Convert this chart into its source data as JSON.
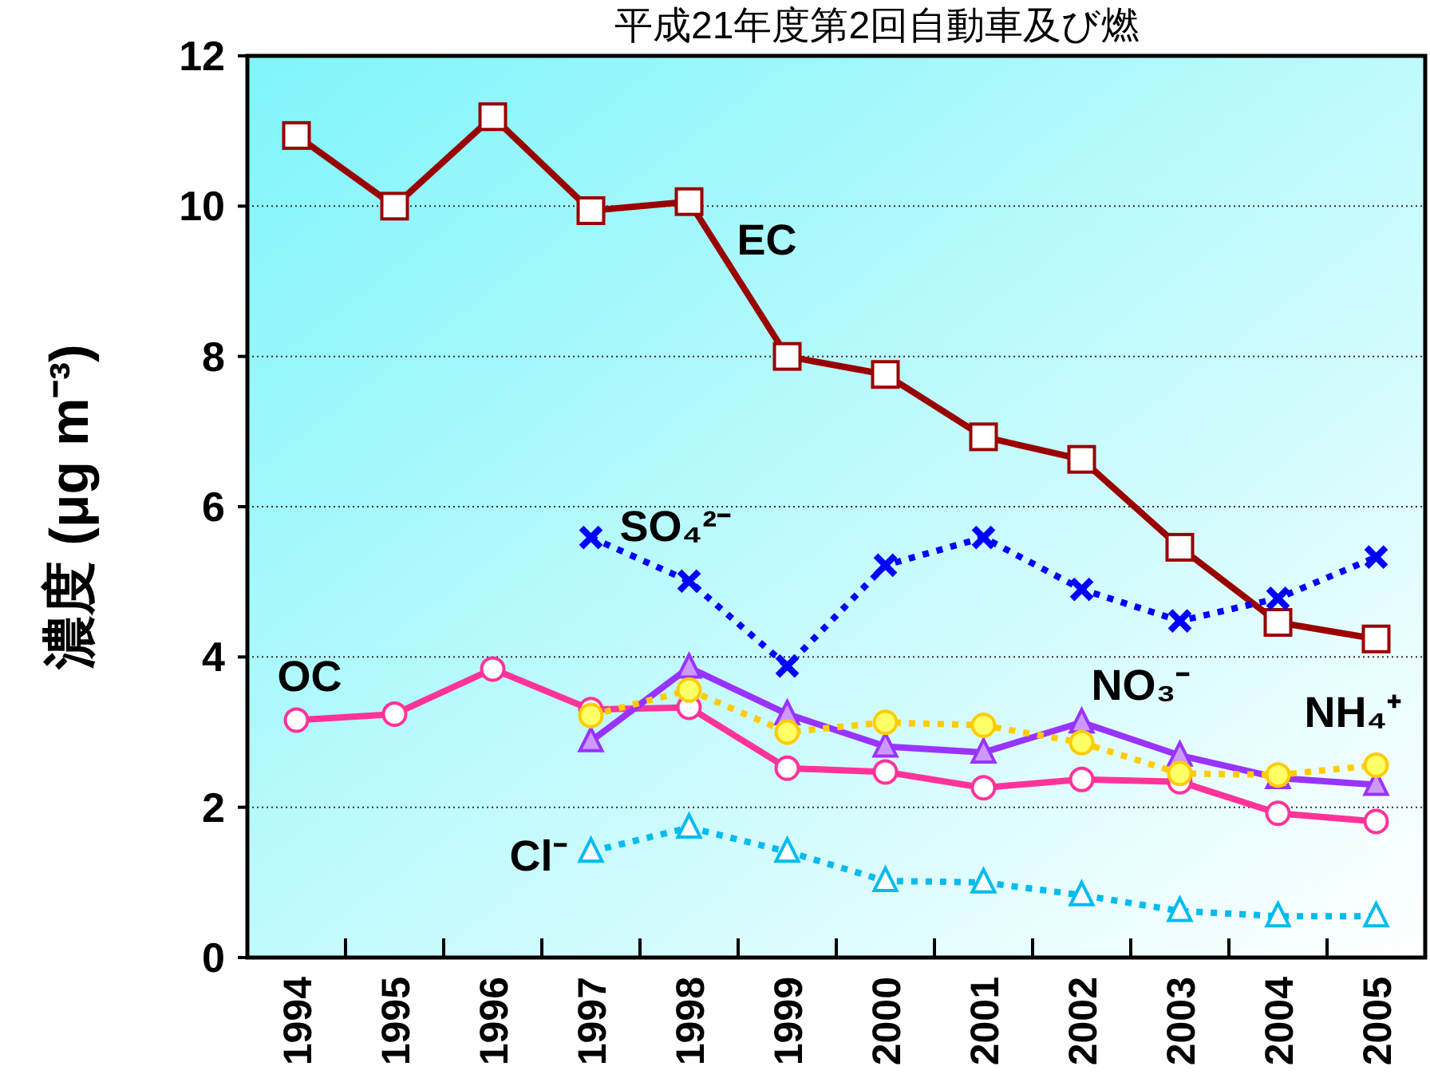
{
  "chart_data": {
    "type": "line",
    "title": "平成21年度第2回自動車及び燃",
    "ylabel": "濃度 (μg m⁻³)",
    "categories": [
      "1994",
      "1995",
      "1996",
      "1997",
      "1998",
      "1999",
      "2000",
      "2001",
      "2002",
      "2003",
      "2004",
      "2005"
    ],
    "ylim": [
      0,
      12
    ],
    "yticks": [
      0,
      2,
      4,
      6,
      8,
      10,
      12
    ],
    "grid": "y",
    "legend": false,
    "series": [
      {
        "name": "EC",
        "color": "#990000",
        "marker": "square",
        "line_style": "solid",
        "values": [
          10.94,
          10.0,
          11.19,
          9.94,
          10.06,
          8.0,
          7.76,
          6.93,
          6.63,
          5.46,
          4.46,
          4.24
        ]
      },
      {
        "name": "SO₄²⁻",
        "color": "#0000ff",
        "marker": "cross",
        "line_style": "dotted",
        "values": [
          null,
          null,
          null,
          5.59,
          5.01,
          3.88,
          5.22,
          5.59,
          4.9,
          4.48,
          4.78,
          5.33
        ]
      },
      {
        "name": "OC",
        "color": "#ff3399",
        "marker": "circle",
        "line_style": "solid",
        "values": [
          3.16,
          3.24,
          3.84,
          3.3,
          3.33,
          2.52,
          2.47,
          2.26,
          2.37,
          2.34,
          1.92,
          1.81
        ]
      },
      {
        "name": "NO₃⁻",
        "color": "#9933ff",
        "marker": "triangle",
        "line_style": "solid",
        "values": [
          null,
          null,
          null,
          2.88,
          3.86,
          3.24,
          2.81,
          2.73,
          3.13,
          2.69,
          2.39,
          2.3
        ]
      },
      {
        "name": "NH₄⁺",
        "color": "#ffcc00",
        "marker": "circle",
        "line_style": "dotted",
        "values": [
          null,
          null,
          null,
          3.22,
          3.56,
          3.0,
          3.13,
          3.09,
          2.86,
          2.45,
          2.43,
          2.56
        ]
      },
      {
        "name": "Cl⁻",
        "color": "#00bbee",
        "marker": "triangle",
        "line_style": "dotted",
        "values": [
          null,
          null,
          null,
          1.41,
          1.73,
          1.41,
          1.02,
          1.0,
          0.83,
          0.62,
          0.55,
          0.55
        ]
      }
    ]
  }
}
